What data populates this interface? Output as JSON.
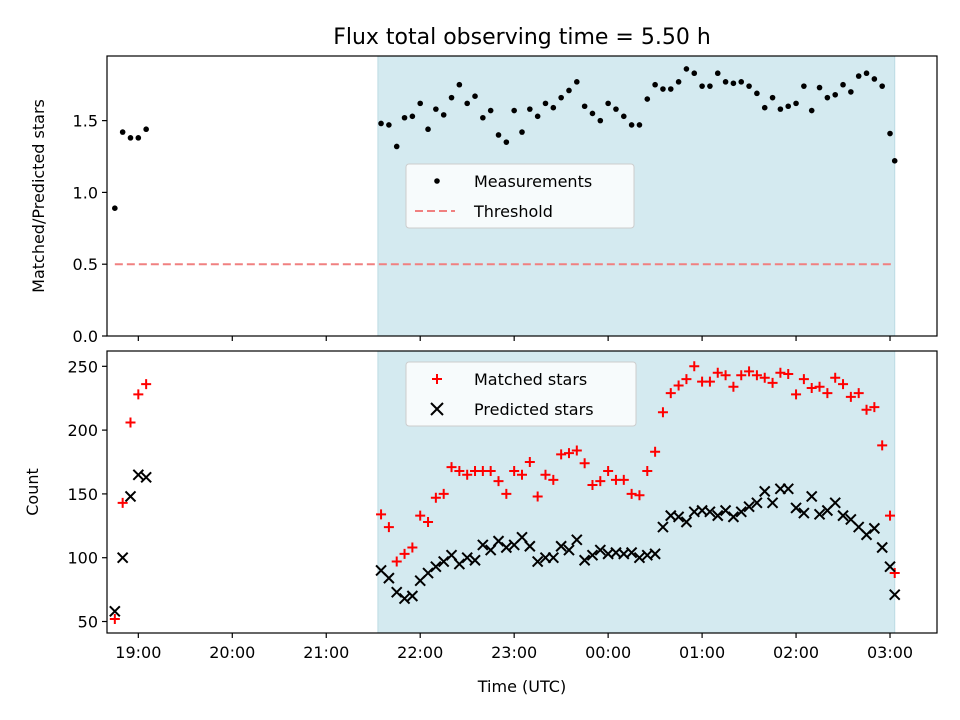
{
  "chart_data": [
    {
      "type": "scatter",
      "title": "Flux total observing time = 5.50 h",
      "ylabel": "Matched/Predicted stars",
      "xlabel": "",
      "xlim": [
        "18:40",
        "03:30"
      ],
      "ylim": [
        0,
        1.95
      ],
      "yticks": [
        0.0,
        0.5,
        1.0,
        1.5
      ],
      "ytick_labels": [
        "0.0",
        "0.5",
        "1.0",
        "1.5"
      ],
      "shaded_span": [
        "21:33",
        "03:03"
      ],
      "shade_color": "#d4eaf0",
      "legend_loc": "center",
      "series": [
        {
          "name": "Measurements",
          "marker": "dot",
          "color": "#000000",
          "points": [
            [
              "18:45",
              0.89
            ],
            [
              "18:50",
              1.42
            ],
            [
              "18:55",
              1.38
            ],
            [
              "19:00",
              1.38
            ],
            [
              "19:05",
              1.44
            ],
            [
              "21:35",
              1.48
            ],
            [
              "21:40",
              1.47
            ],
            [
              "21:45",
              1.32
            ],
            [
              "21:50",
              1.52
            ],
            [
              "21:55",
              1.53
            ],
            [
              "22:00",
              1.62
            ],
            [
              "22:05",
              1.44
            ],
            [
              "22:10",
              1.58
            ],
            [
              "22:15",
              1.54
            ],
            [
              "22:20",
              1.66
            ],
            [
              "22:25",
              1.75
            ],
            [
              "22:30",
              1.62
            ],
            [
              "22:35",
              1.67
            ],
            [
              "22:40",
              1.52
            ],
            [
              "22:45",
              1.57
            ],
            [
              "22:50",
              1.4
            ],
            [
              "22:55",
              1.35
            ],
            [
              "23:00",
              1.57
            ],
            [
              "23:05",
              1.42
            ],
            [
              "23:10",
              1.58
            ],
            [
              "23:15",
              1.53
            ],
            [
              "23:20",
              1.62
            ],
            [
              "23:25",
              1.59
            ],
            [
              "23:30",
              1.66
            ],
            [
              "23:35",
              1.71
            ],
            [
              "23:40",
              1.77
            ],
            [
              "23:45",
              1.6
            ],
            [
              "23:50",
              1.55
            ],
            [
              "23:55",
              1.5
            ],
            [
              "00:00",
              1.62
            ],
            [
              "00:05",
              1.58
            ],
            [
              "00:10",
              1.53
            ],
            [
              "00:15",
              1.47
            ],
            [
              "00:20",
              1.47
            ],
            [
              "00:25",
              1.65
            ],
            [
              "00:30",
              1.75
            ],
            [
              "00:35",
              1.72
            ],
            [
              "00:40",
              1.72
            ],
            [
              "00:45",
              1.77
            ],
            [
              "00:50",
              1.86
            ],
            [
              "00:55",
              1.83
            ],
            [
              "01:00",
              1.74
            ],
            [
              "01:05",
              1.74
            ],
            [
              "01:10",
              1.83
            ],
            [
              "01:15",
              1.77
            ],
            [
              "01:20",
              1.76
            ],
            [
              "01:25",
              1.77
            ],
            [
              "01:30",
              1.74
            ],
            [
              "01:35",
              1.69
            ],
            [
              "01:40",
              1.59
            ],
            [
              "01:45",
              1.66
            ],
            [
              "01:50",
              1.58
            ],
            [
              "01:55",
              1.6
            ],
            [
              "02:00",
              1.62
            ],
            [
              "02:05",
              1.74
            ],
            [
              "02:10",
              1.57
            ],
            [
              "02:15",
              1.73
            ],
            [
              "02:20",
              1.66
            ],
            [
              "02:25",
              1.68
            ],
            [
              "02:30",
              1.75
            ],
            [
              "02:35",
              1.7
            ],
            [
              "02:40",
              1.81
            ],
            [
              "02:45",
              1.83
            ],
            [
              "02:50",
              1.79
            ],
            [
              "02:55",
              1.74
            ],
            [
              "03:00",
              1.41
            ],
            [
              "03:03",
              1.22
            ]
          ]
        },
        {
          "name": "Threshold",
          "marker": "dashed-line",
          "color": "#f08080",
          "points": [
            [
              "18:45",
              0.5
            ],
            [
              "03:03",
              0.5
            ]
          ]
        }
      ]
    },
    {
      "type": "scatter",
      "title": "",
      "xlabel": "Time (UTC)",
      "ylabel": "Count",
      "xlim": [
        "18:40",
        "03:30"
      ],
      "xticks": [
        "19:00",
        "20:00",
        "21:00",
        "22:00",
        "23:00",
        "00:00",
        "01:00",
        "02:00",
        "03:00"
      ],
      "ylim": [
        41,
        262
      ],
      "yticks": [
        50,
        100,
        150,
        200,
        250
      ],
      "ytick_labels": [
        "50",
        "100",
        "150",
        "200",
        "250"
      ],
      "shaded_span": [
        "21:33",
        "03:03"
      ],
      "shade_color": "#d4eaf0",
      "legend_loc": "upper center",
      "series": [
        {
          "name": "Matched stars",
          "marker": "plus",
          "color": "#ff0000",
          "points": [
            [
              "18:45",
              52
            ],
            [
              "18:50",
              143
            ],
            [
              "18:55",
              206
            ],
            [
              "19:00",
              228
            ],
            [
              "19:05",
              236
            ],
            [
              "21:35",
              134
            ],
            [
              "21:40",
              124
            ],
            [
              "21:45",
              97
            ],
            [
              "21:50",
              103
            ],
            [
              "21:55",
              108
            ],
            [
              "22:00",
              133
            ],
            [
              "22:05",
              128
            ],
            [
              "22:10",
              147
            ],
            [
              "22:15",
              150
            ],
            [
              "22:20",
              171
            ],
            [
              "22:25",
              168
            ],
            [
              "22:30",
              165
            ],
            [
              "22:35",
              168
            ],
            [
              "22:40",
              168
            ],
            [
              "22:45",
              168
            ],
            [
              "22:50",
              160
            ],
            [
              "22:55",
              150
            ],
            [
              "23:00",
              168
            ],
            [
              "23:05",
              165
            ],
            [
              "23:10",
              175
            ],
            [
              "23:15",
              148
            ],
            [
              "23:20",
              165
            ],
            [
              "23:25",
              161
            ],
            [
              "23:30",
              181
            ],
            [
              "23:35",
              182
            ],
            [
              "23:40",
              184
            ],
            [
              "23:45",
              174
            ],
            [
              "23:50",
              157
            ],
            [
              "23:55",
              160
            ],
            [
              "00:00",
              168
            ],
            [
              "00:05",
              161
            ],
            [
              "00:10",
              161
            ],
            [
              "00:15",
              150
            ],
            [
              "00:20",
              149
            ],
            [
              "00:25",
              168
            ],
            [
              "00:30",
              183
            ],
            [
              "00:35",
              214
            ],
            [
              "00:40",
              229
            ],
            [
              "00:45",
              235
            ],
            [
              "00:50",
              240
            ],
            [
              "00:55",
              250
            ],
            [
              "01:00",
              238
            ],
            [
              "01:05",
              238
            ],
            [
              "01:10",
              245
            ],
            [
              "01:15",
              243
            ],
            [
              "01:20",
              234
            ],
            [
              "01:25",
              243
            ],
            [
              "01:30",
              246
            ],
            [
              "01:35",
              243
            ],
            [
              "01:40",
              241
            ],
            [
              "01:45",
              237
            ],
            [
              "01:50",
              245
            ],
            [
              "01:55",
              244
            ],
            [
              "02:00",
              228
            ],
            [
              "02:05",
              240
            ],
            [
              "02:10",
              233
            ],
            [
              "02:15",
              234
            ],
            [
              "02:20",
              229
            ],
            [
              "02:25",
              241
            ],
            [
              "02:30",
              236
            ],
            [
              "02:35",
              226
            ],
            [
              "02:40",
              229
            ],
            [
              "02:45",
              216
            ],
            [
              "02:50",
              218
            ],
            [
              "02:55",
              188
            ],
            [
              "03:00",
              133
            ],
            [
              "03:03",
              88
            ]
          ]
        },
        {
          "name": "Predicted stars",
          "marker": "x",
          "color": "#000000",
          "points": [
            [
              "18:45",
              58
            ],
            [
              "18:50",
              100
            ],
            [
              "18:55",
              148
            ],
            [
              "19:00",
              165
            ],
            [
              "19:05",
              163
            ],
            [
              "21:35",
              90
            ],
            [
              "21:40",
              84
            ],
            [
              "21:45",
              73
            ],
            [
              "21:50",
              68
            ],
            [
              "21:55",
              70
            ],
            [
              "22:00",
              82
            ],
            [
              "22:05",
              88
            ],
            [
              "22:10",
              93
            ],
            [
              "22:15",
              97
            ],
            [
              "22:20",
              102
            ],
            [
              "22:25",
              95
            ],
            [
              "22:30",
              100
            ],
            [
              "22:35",
              98
            ],
            [
              "22:40",
              110
            ],
            [
              "22:45",
              106
            ],
            [
              "22:50",
              113
            ],
            [
              "22:55",
              108
            ],
            [
              "23:00",
              110
            ],
            [
              "23:05",
              116
            ],
            [
              "23:10",
              109
            ],
            [
              "23:15",
              97
            ],
            [
              "23:20",
              100
            ],
            [
              "23:25",
              100
            ],
            [
              "23:30",
              109
            ],
            [
              "23:35",
              106
            ],
            [
              "23:40",
              114
            ],
            [
              "23:45",
              98
            ],
            [
              "23:50",
              102
            ],
            [
              "23:55",
              106
            ],
            [
              "00:00",
              103
            ],
            [
              "00:05",
              104
            ],
            [
              "00:10",
              103
            ],
            [
              "00:15",
              104
            ],
            [
              "00:20",
              100
            ],
            [
              "00:25",
              102
            ],
            [
              "00:30",
              103
            ],
            [
              "00:35",
              124
            ],
            [
              "00:40",
              133
            ],
            [
              "00:45",
              132
            ],
            [
              "00:50",
              128
            ],
            [
              "00:55",
              136
            ],
            [
              "01:00",
              137
            ],
            [
              "01:05",
              136
            ],
            [
              "01:10",
              133
            ],
            [
              "01:15",
              137
            ],
            [
              "01:20",
              132
            ],
            [
              "01:25",
              136
            ],
            [
              "01:30",
              140
            ],
            [
              "01:35",
              143
            ],
            [
              "01:40",
              152
            ],
            [
              "01:45",
              143
            ],
            [
              "01:50",
              154
            ],
            [
              "01:55",
              154
            ],
            [
              "02:00",
              139
            ],
            [
              "02:05",
              135
            ],
            [
              "02:10",
              148
            ],
            [
              "02:15",
              134
            ],
            [
              "02:20",
              137
            ],
            [
              "02:25",
              143
            ],
            [
              "02:30",
              133
            ],
            [
              "02:35",
              130
            ],
            [
              "02:40",
              124
            ],
            [
              "02:45",
              118
            ],
            [
              "02:50",
              123
            ],
            [
              "02:55",
              108
            ],
            [
              "03:00",
              93
            ],
            [
              "03:03",
              71
            ]
          ]
        }
      ]
    }
  ]
}
